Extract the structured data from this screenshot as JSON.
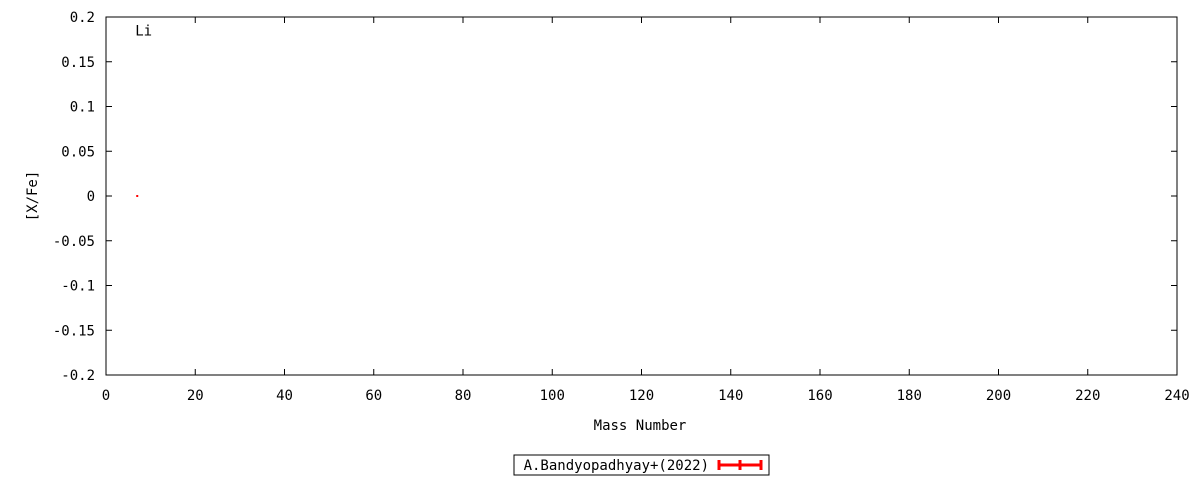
{
  "chart_data": {
    "type": "scatter",
    "xlabel": "Mass Number",
    "ylabel": "[X/Fe]",
    "xlim": [
      0,
      240
    ],
    "ylim": [
      -0.2,
      0.2
    ],
    "xticks": [
      0,
      20,
      40,
      60,
      80,
      100,
      120,
      140,
      160,
      180,
      200,
      220,
      240
    ],
    "yticks": [
      -0.2,
      -0.15,
      -0.1,
      -0.05,
      0,
      0.05,
      0.1,
      0.15,
      0.2
    ],
    "ytick_labels": [
      "-0.2",
      "-0.15",
      "-0.1",
      "-0.05",
      "0",
      "0.05",
      "0.1",
      "0.15",
      "0.2"
    ],
    "grid": false,
    "legend_placement": "bottom-center",
    "series": [
      {
        "name": "A.Bandyopadhyay+(2022)",
        "color": "#ff0000",
        "points": [
          {
            "x": 7,
            "y": 0
          }
        ]
      }
    ],
    "annotations": [
      {
        "text": "Li",
        "x": 7,
        "y": 0.185
      }
    ]
  }
}
